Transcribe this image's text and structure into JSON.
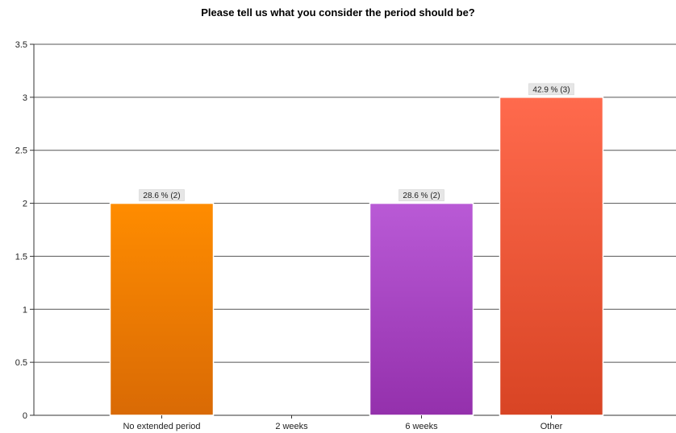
{
  "chart_data": {
    "type": "bar",
    "title": "Please tell us what you consider the period should be?",
    "categories": [
      "No extended period",
      "2 weeks",
      "6 weeks",
      "Other"
    ],
    "values": [
      2,
      0,
      2,
      3
    ],
    "data_labels": [
      "28.6 % (2)",
      "",
      "28.6 % (2)",
      "42.9 % (3)"
    ],
    "bar_colors": [
      [
        "#ff8c00",
        "#d96a05"
      ],
      [
        "#cccccc",
        "#999999"
      ],
      [
        "#b95ad6",
        "#9430ac"
      ],
      [
        "#ff6a4d",
        "#d84424"
      ]
    ],
    "ylim": [
      0,
      3.5
    ],
    "yticks": [
      "0",
      "0.5",
      "1",
      "1.5",
      "2",
      "2.5",
      "3",
      "3.5"
    ],
    "grid": true,
    "xlabel": "",
    "ylabel": ""
  }
}
